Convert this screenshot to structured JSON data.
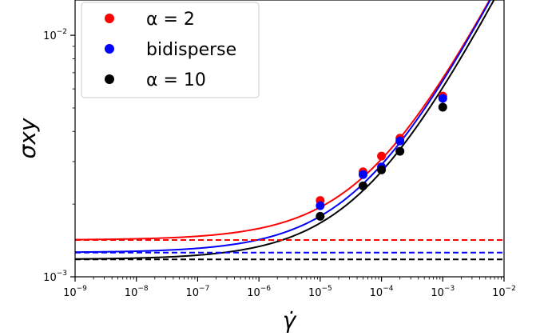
{
  "chart_data": {
    "type": "line",
    "title": "",
    "xlabel": "γ̇",
    "ylabel": "σxy",
    "xscale": "log",
    "yscale": "log",
    "xlim": [
      1e-09,
      0.01
    ],
    "ylim": [
      0.001,
      0.014
    ],
    "x_ticks": [
      {
        "base": "10",
        "exp": "−9",
        "value": 1e-09
      },
      {
        "base": "10",
        "exp": "−8",
        "value": 1e-08
      },
      {
        "base": "10",
        "exp": "−7",
        "value": 1e-07
      },
      {
        "base": "10",
        "exp": "−6",
        "value": 1e-06
      },
      {
        "base": "10",
        "exp": "−5",
        "value": 1e-05
      },
      {
        "base": "10",
        "exp": "−4",
        "value": 0.0001
      },
      {
        "base": "10",
        "exp": "−3",
        "value": 0.001
      },
      {
        "base": "10",
        "exp": "−2",
        "value": 0.01
      }
    ],
    "y_ticks": [
      {
        "base": "10",
        "exp": "−3",
        "value": 0.001
      },
      {
        "base": "10",
        "exp": "−2",
        "value": 0.01
      }
    ],
    "grid": false,
    "legend_position": "top-left",
    "legend": [
      {
        "label_prefix": "",
        "label_main": "α = 2",
        "color": "#ff0000"
      },
      {
        "label_prefix": "",
        "label_main": "bidisperse",
        "color": "#0000ff"
      },
      {
        "label_prefix": "",
        "label_main": "α = 10",
        "color": "#000000"
      }
    ],
    "series": [
      {
        "color": "#ff0000",
        "points": {
          "x": [
            1e-05,
            5e-05,
            0.0001,
            0.0002,
            0.001
          ],
          "y": [
            0.00207,
            0.00272,
            0.00316,
            0.00375,
            0.0056
          ]
        },
        "model": {
          "sigma0": 0.00142,
          "k": 0.165,
          "n": 0.5
        },
        "yield_line": 0.00142
      },
      {
        "color": "#0000ff",
        "points": {
          "x": [
            1e-05,
            5e-05,
            0.0001,
            0.0002,
            0.001
          ],
          "y": [
            0.00197,
            0.00265,
            0.00285,
            0.00365,
            0.00548
          ]
        },
        "model": {
          "sigma0": 0.00126,
          "k": 0.165,
          "n": 0.5
        },
        "yield_line": 0.00126
      },
      {
        "color": "#000000",
        "points": {
          "x": [
            1e-05,
            5e-05,
            0.0001,
            0.0002,
            0.001
          ],
          "y": [
            0.00178,
            0.00238,
            0.00277,
            0.00331,
            0.00504
          ]
        },
        "model": {
          "sigma0": 0.00118,
          "k": 0.155,
          "n": 0.5
        },
        "yield_line": 0.00118
      }
    ]
  }
}
